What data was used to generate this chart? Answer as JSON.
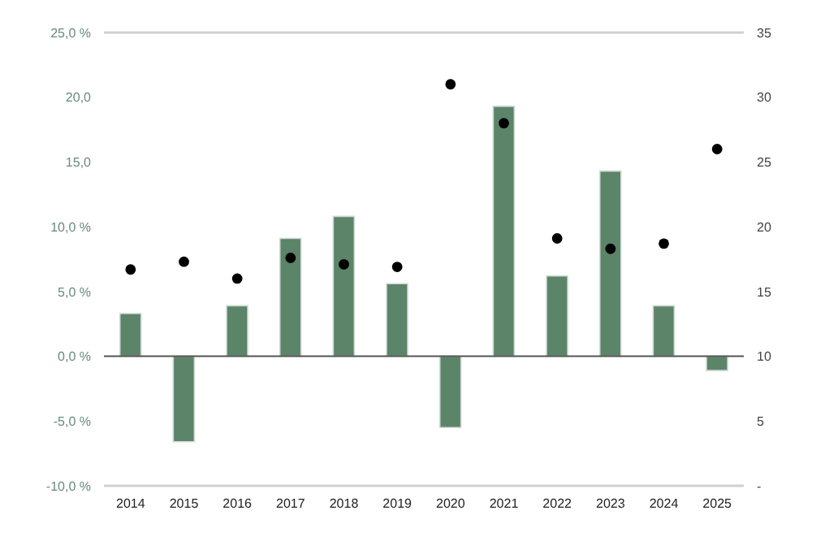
{
  "chart_data": {
    "type": "bar",
    "categories": [
      "2014",
      "2015",
      "2016",
      "2017",
      "2018",
      "2019",
      "2020",
      "2021",
      "2022",
      "2023",
      "2024",
      "2025"
    ],
    "series": [
      {
        "color": "#5b8469",
        "values": [
          3.3,
          -6.6,
          3.9,
          9.1,
          10.8,
          5.6,
          -5.5,
          19.3,
          6.2,
          14.3,
          3.9,
          -1.1
        ]
      },
      {
        "type": "scatter",
        "axis": "y2",
        "color": "#000000",
        "values": [
          16.7,
          17.3,
          16.0,
          17.6,
          17.1,
          16.9,
          31.0,
          28.0,
          19.1,
          18.3,
          18.7,
          26.0
        ]
      }
    ],
    "ylim": [
      -10,
      25
    ],
    "yticks": [
      {
        "value": -10,
        "label": "-10,0 %"
      },
      {
        "value": -5,
        "label": "-5,0 %"
      },
      {
        "value": 0,
        "label": "0,0 %"
      },
      {
        "value": 5,
        "label": "5,0 %"
      },
      {
        "value": 10,
        "label": "10,0 %"
      },
      {
        "value": 15,
        "label": "15,0"
      },
      {
        "value": 20,
        "label": "20,0"
      },
      {
        "value": 25,
        "label": "25,0 %"
      }
    ],
    "y2lim": [
      0,
      35
    ],
    "y2ticks": [
      {
        "value": 0,
        "label": "-"
      },
      5,
      10,
      15,
      20,
      25,
      30,
      35
    ],
    "grid": "y",
    "marker": "circle"
  }
}
